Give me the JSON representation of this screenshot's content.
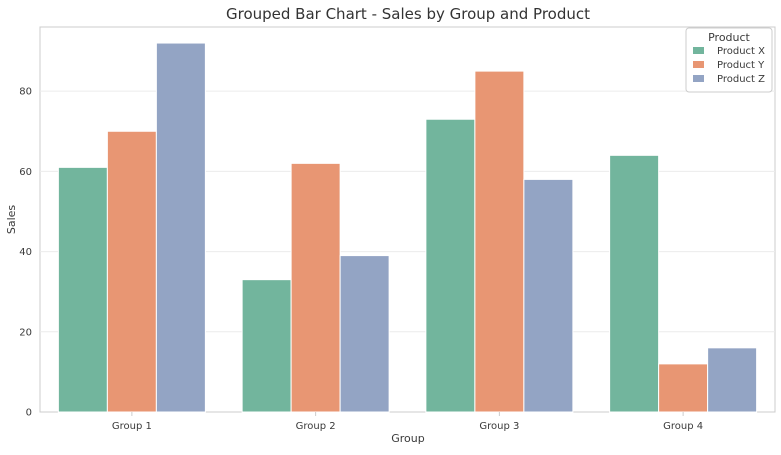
{
  "chart_data": {
    "type": "bar",
    "title": "Grouped Bar Chart - Sales by Group and Product",
    "xlabel": "Group",
    "ylabel": "Sales",
    "categories": [
      "Group 1",
      "Group 2",
      "Group 3",
      "Group 4"
    ],
    "ylim": [
      0,
      96
    ],
    "yticks": [
      0,
      20,
      40,
      60,
      80
    ],
    "grid": true,
    "legend_title": "Product",
    "legend_position": "top-right",
    "series": [
      {
        "name": "Product X",
        "color": "#72b59d",
        "values": [
          61,
          33,
          73,
          64
        ]
      },
      {
        "name": "Product Y",
        "color": "#e89673",
        "values": [
          70,
          62,
          85,
          12
        ]
      },
      {
        "name": "Product Z",
        "color": "#93a4c4",
        "values": [
          92,
          39,
          58,
          16
        ]
      }
    ]
  }
}
